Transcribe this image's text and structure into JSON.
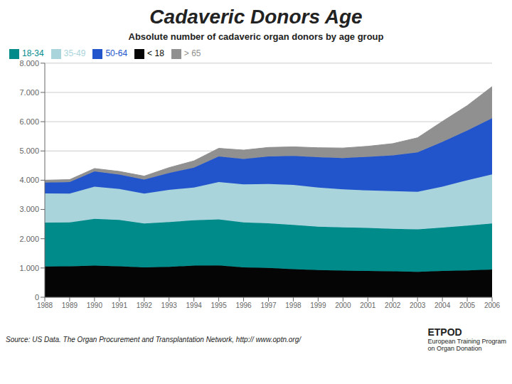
{
  "chart_data": {
    "type": "area",
    "stacked": true,
    "title": "Cadaveric Donors Age",
    "subtitle": "Absolute number of cadaveric organ donors by age group",
    "annotations": [
      "Source: US Data. The Organ Procurement and Transplantation Network, http:// www.optn.org/",
      "ETPOD",
      "European Training Program\non Organ Donation"
    ],
    "x": [
      1988,
      1989,
      1990,
      1991,
      1992,
      1993,
      1994,
      1995,
      1996,
      1997,
      1998,
      1999,
      2000,
      2001,
      2002,
      2003,
      2004,
      2005,
      2006
    ],
    "series": [
      {
        "name": "< 18",
        "color": "#050505",
        "values": [
          1050,
          1060,
          1080,
          1060,
          1020,
          1040,
          1080,
          1090,
          1020,
          1000,
          960,
          930,
          910,
          900,
          890,
          870,
          900,
          920,
          950
        ]
      },
      {
        "name": "18-34",
        "color": "#008b8b",
        "values": [
          1500,
          1500,
          1600,
          1580,
          1500,
          1530,
          1550,
          1570,
          1540,
          1530,
          1510,
          1480,
          1480,
          1470,
          1450,
          1450,
          1480,
          1530,
          1570
        ]
      },
      {
        "name": "35-49",
        "color": "#aad4dc",
        "values": [
          1000,
          980,
          1100,
          1060,
          1020,
          1100,
          1120,
          1280,
          1300,
          1340,
          1370,
          1340,
          1300,
          1280,
          1290,
          1280,
          1400,
          1550,
          1680
        ]
      },
      {
        "name": "50-64",
        "color": "#2255cc",
        "values": [
          370,
          400,
          520,
          490,
          480,
          580,
          680,
          870,
          870,
          940,
          990,
          1040,
          1070,
          1150,
          1220,
          1350,
          1530,
          1700,
          1920
        ]
      },
      {
        "name": "> 65",
        "color": "#909090",
        "values": [
          80,
          80,
          100,
          110,
          120,
          180,
          230,
          280,
          300,
          310,
          310,
          320,
          340,
          360,
          400,
          500,
          700,
          850,
          1080
        ]
      }
    ],
    "xlim": [
      1988,
      2006
    ],
    "xticks": [
      1988,
      1989,
      1990,
      1991,
      1992,
      1993,
      1994,
      1995,
      1996,
      1997,
      1998,
      1999,
      2000,
      2001,
      2002,
      2003,
      2004,
      2005,
      2006
    ],
    "ylim": [
      0,
      8000
    ],
    "yticks": [
      0,
      {
        "value": 1000,
        "label": "1.000"
      },
      {
        "value": 2000,
        "label": "2.000"
      },
      {
        "value": 3000,
        "label": "3.000"
      },
      {
        "value": 4000,
        "label": "4.000"
      },
      {
        "value": 5000,
        "label": "5.000"
      },
      {
        "value": 6000,
        "label": "6.000"
      },
      {
        "value": 7000,
        "label": "7.000"
      },
      {
        "value": 8000,
        "label": "8.000"
      }
    ],
    "grid": true,
    "legend": "upper left"
  }
}
